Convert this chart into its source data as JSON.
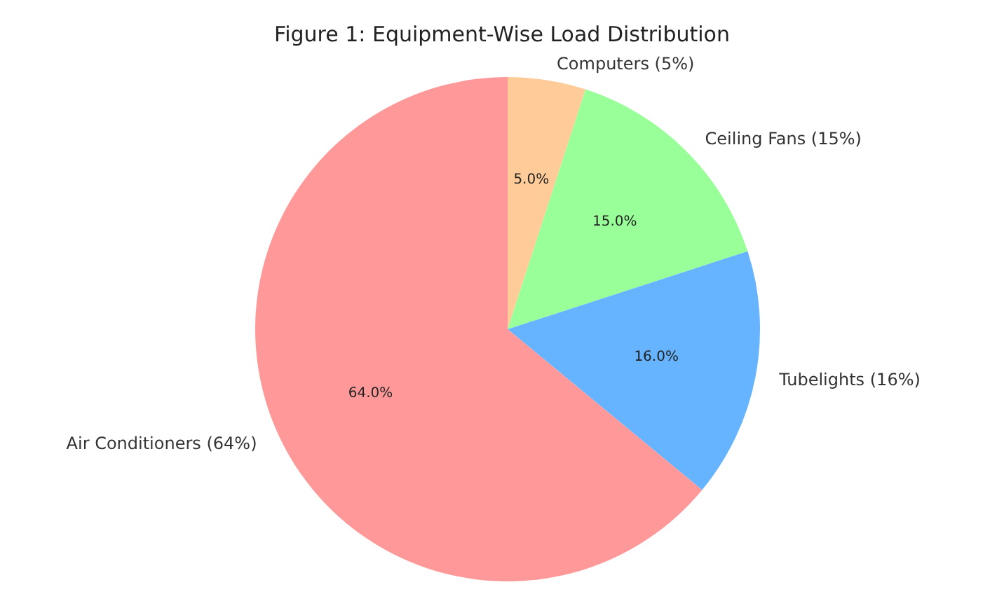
{
  "chart_data": {
    "type": "pie",
    "title": "Figure 1: Equipment-Wise Load Distribution",
    "categories": [
      "Computers (5%)",
      "Ceiling Fans (15%)",
      "Tubelights (16%)",
      "Air Conditioners (64%)"
    ],
    "values": [
      5,
      15,
      16,
      64
    ],
    "colors": [
      "#ffcc99",
      "#99ff99",
      "#66b3ff",
      "#ff9999"
    ],
    "value_labels": [
      "5.0%",
      "15.0%",
      "16.0%",
      "64.0%"
    ],
    "legend": false
  }
}
